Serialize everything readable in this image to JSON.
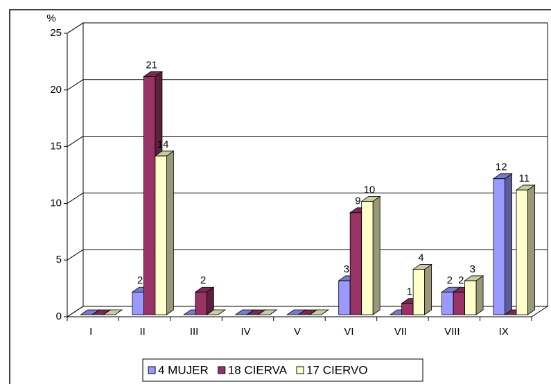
{
  "chart_data": {
    "type": "bar3d",
    "y_label": "%",
    "categories": [
      "I",
      "II",
      "III",
      "IV",
      "V",
      "VI",
      "VII",
      "VIII",
      "IX"
    ],
    "series": [
      {
        "name": "4 MUJER",
        "color": "#9999ff",
        "values": [
          0,
          2,
          0,
          0,
          0,
          3,
          0,
          2,
          12
        ]
      },
      {
        "name": "18 CIERVA",
        "color": "#993366",
        "values": [
          0,
          21,
          2,
          0,
          0,
          9,
          1,
          2,
          0
        ]
      },
      {
        "name": "17 CIERVO",
        "color": "#ffffcc",
        "values": [
          0,
          14,
          0,
          0,
          0,
          10,
          4,
          3,
          11
        ]
      }
    ],
    "ylim": [
      0,
      25
    ],
    "yticks": [
      0,
      5,
      10,
      15,
      20,
      25
    ],
    "grid": true,
    "legend": "bottom"
  }
}
